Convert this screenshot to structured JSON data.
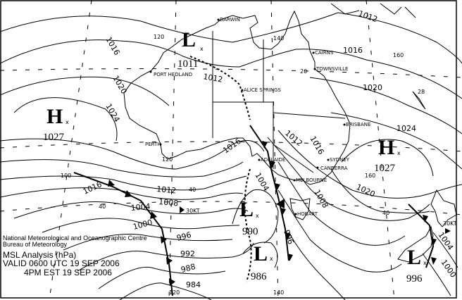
{
  "legend": {
    "org_line1": "National Meteorological and Oceanographic Centre",
    "org_line2": "Bureau of Meteorology",
    "title": "MSL Analysis (hPa)",
    "valid_utc": "VALID 0600 UTC 19 SEP 2006",
    "valid_local": "4PM EST 19 SEP 2006"
  },
  "pressure_centres": [
    {
      "type": "L",
      "value": "1011"
    },
    {
      "type": "H",
      "value": "1027"
    },
    {
      "type": "H",
      "value": "1027"
    },
    {
      "type": "L",
      "value": "990"
    },
    {
      "type": "L",
      "value": "986"
    },
    {
      "type": "L",
      "value": "996"
    }
  ],
  "cities": [
    "DARWIN",
    "CAIRNS",
    "TOWNSVILLE",
    "PORT HEDLAND",
    "ALICE SPRINGS",
    "BRISBANE",
    "PERTH",
    "ADELAIDE",
    "SYDNEY",
    "CANBERRA",
    "MELBOURNE",
    "HOBART"
  ],
  "isobar_labels": [
    "1012",
    "1016",
    "1020",
    "1024",
    "1016",
    "1020",
    "1024",
    "1012",
    "1016",
    "1012",
    "1008",
    "1004",
    "1000",
    "996",
    "992",
    "988",
    "984",
    "1016",
    "1012",
    "1016",
    "1008",
    "1004",
    "996",
    "1020",
    "1004",
    "1000"
  ],
  "grid_labels": [
    "120",
    "140",
    "160",
    "20",
    "120",
    "100",
    "40",
    "40",
    "160",
    "40",
    "28",
    "120",
    "140"
  ],
  "wind_labels": [
    "30KT",
    "30KT"
  ]
}
